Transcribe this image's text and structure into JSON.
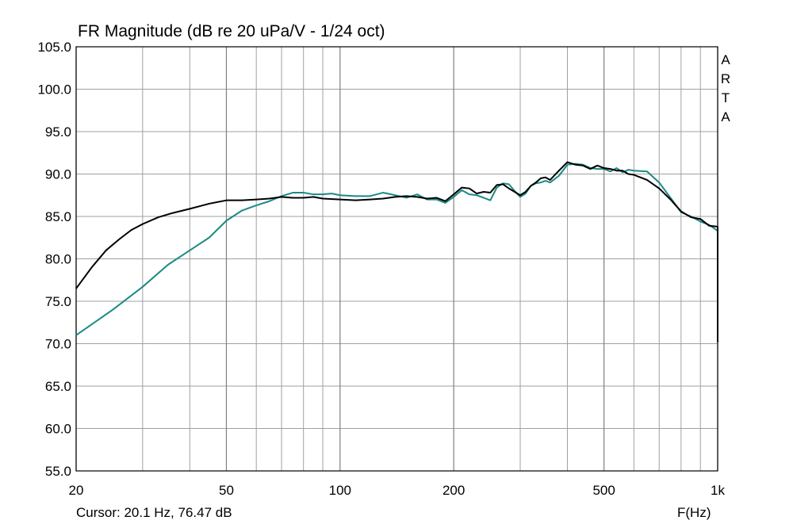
{
  "title": "FR Magnitude (dB re 20 uPa/V - 1/24 oct)",
  "cursor_text": "Cursor: 20.1 Hz, 76.47 dB",
  "x_unit_label": "F(Hz)",
  "brand_letters": [
    "A",
    "R",
    "T",
    "A"
  ],
  "colors": {
    "series_black": "#000000",
    "series_teal": "#1a8a84",
    "grid": "#a0a0a0",
    "axes": "#000000"
  },
  "chart_data": {
    "type": "line",
    "title": "FR Magnitude (dB re 20 uPa/V - 1/24 oct)",
    "xlabel": "F(Hz)",
    "ylabel": "",
    "x_scale": "log",
    "xlim": [
      20,
      1000
    ],
    "ylim": [
      55,
      105
    ],
    "grid": true,
    "x_ticks": [
      20,
      50,
      100,
      200,
      500,
      1000
    ],
    "x_tick_labels": [
      "20",
      "50",
      "100",
      "200",
      "500",
      "1k"
    ],
    "x_minor_grid": [
      30,
      40,
      60,
      70,
      80,
      90,
      300,
      400,
      600,
      700,
      800,
      900
    ],
    "y_ticks": [
      55,
      60,
      65,
      70,
      75,
      80,
      85,
      90,
      95,
      100,
      105
    ],
    "y_tick_labels": [
      "55.0",
      "60.0",
      "65.0",
      "70.0",
      "75.0",
      "80.0",
      "85.0",
      "90.0",
      "95.0",
      "100.0",
      "105.0"
    ],
    "series": [
      {
        "color": "#000000",
        "points": [
          [
            20,
            76.5
          ],
          [
            22,
            79
          ],
          [
            24,
            81
          ],
          [
            26,
            82.3
          ],
          [
            28,
            83.4
          ],
          [
            30,
            84.1
          ],
          [
            33,
            84.9
          ],
          [
            36,
            85.4
          ],
          [
            40,
            85.9
          ],
          [
            45,
            86.5
          ],
          [
            50,
            86.9
          ],
          [
            55,
            86.9
          ],
          [
            60,
            87.0
          ],
          [
            65,
            87.1
          ],
          [
            70,
            87.3
          ],
          [
            75,
            87.2
          ],
          [
            80,
            87.2
          ],
          [
            85,
            87.3
          ],
          [
            90,
            87.1
          ],
          [
            100,
            87.0
          ],
          [
            110,
            86.9
          ],
          [
            120,
            87.0
          ],
          [
            130,
            87.1
          ],
          [
            140,
            87.3
          ],
          [
            150,
            87.4
          ],
          [
            160,
            87.3
          ],
          [
            170,
            87.1
          ],
          [
            180,
            87.2
          ],
          [
            190,
            86.8
          ],
          [
            200,
            87.6
          ],
          [
            210,
            88.4
          ],
          [
            220,
            88.3
          ],
          [
            230,
            87.7
          ],
          [
            240,
            87.9
          ],
          [
            250,
            87.8
          ],
          [
            260,
            88.7
          ],
          [
            270,
            88.8
          ],
          [
            280,
            88.3
          ],
          [
            290,
            87.9
          ],
          [
            300,
            87.5
          ],
          [
            310,
            87.9
          ],
          [
            320,
            88.6
          ],
          [
            330,
            89.0
          ],
          [
            340,
            89.5
          ],
          [
            350,
            89.6
          ],
          [
            360,
            89.3
          ],
          [
            380,
            90.4
          ],
          [
            400,
            91.4
          ],
          [
            420,
            91.1
          ],
          [
            440,
            91.0
          ],
          [
            460,
            90.6
          ],
          [
            480,
            91.0
          ],
          [
            500,
            90.7
          ],
          [
            520,
            90.6
          ],
          [
            540,
            90.4
          ],
          [
            560,
            90.4
          ],
          [
            580,
            90.0
          ],
          [
            600,
            89.9
          ],
          [
            650,
            89.3
          ],
          [
            700,
            88.3
          ],
          [
            750,
            87.0
          ],
          [
            800,
            85.6
          ],
          [
            850,
            84.9
          ],
          [
            900,
            84.7
          ],
          [
            950,
            83.9
          ],
          [
            1000,
            83.8
          ],
          [
            1050,
            82.7
          ],
          [
            1100,
            80.5
          ],
          [
            1150,
            76.0
          ],
          [
            1170,
            70.2
          ]
        ]
      },
      {
        "color": "#1a8a84",
        "points": [
          [
            20,
            71.0
          ],
          [
            25,
            74.0
          ],
          [
            30,
            76.7
          ],
          [
            35,
            79.3
          ],
          [
            40,
            81.0
          ],
          [
            45,
            82.5
          ],
          [
            50,
            84.5
          ],
          [
            55,
            85.7
          ],
          [
            60,
            86.3
          ],
          [
            65,
            86.8
          ],
          [
            70,
            87.4
          ],
          [
            75,
            87.8
          ],
          [
            80,
            87.8
          ],
          [
            85,
            87.6
          ],
          [
            90,
            87.6
          ],
          [
            95,
            87.7
          ],
          [
            100,
            87.5
          ],
          [
            110,
            87.4
          ],
          [
            120,
            87.4
          ],
          [
            130,
            87.8
          ],
          [
            140,
            87.5
          ],
          [
            150,
            87.2
          ],
          [
            160,
            87.6
          ],
          [
            170,
            87.0
          ],
          [
            180,
            87.0
          ],
          [
            190,
            86.6
          ],
          [
            200,
            87.3
          ],
          [
            210,
            88.1
          ],
          [
            220,
            87.6
          ],
          [
            230,
            87.5
          ],
          [
            240,
            87.2
          ],
          [
            250,
            86.9
          ],
          [
            260,
            88.4
          ],
          [
            270,
            88.9
          ],
          [
            280,
            88.8
          ],
          [
            290,
            88.0
          ],
          [
            300,
            87.3
          ],
          [
            310,
            87.7
          ],
          [
            320,
            88.6
          ],
          [
            330,
            88.9
          ],
          [
            340,
            89.0
          ],
          [
            350,
            89.2
          ],
          [
            360,
            89.0
          ],
          [
            380,
            89.8
          ],
          [
            400,
            91.1
          ],
          [
            420,
            91.2
          ],
          [
            440,
            91.1
          ],
          [
            460,
            90.7
          ],
          [
            480,
            90.6
          ],
          [
            500,
            90.6
          ],
          [
            520,
            90.3
          ],
          [
            540,
            90.7
          ],
          [
            560,
            90.2
          ],
          [
            580,
            90.5
          ],
          [
            600,
            90.4
          ],
          [
            650,
            90.3
          ],
          [
            700,
            89.0
          ],
          [
            750,
            87.2
          ],
          [
            800,
            85.5
          ],
          [
            850,
            85.0
          ],
          [
            900,
            84.4
          ],
          [
            950,
            84.0
          ],
          [
            1000,
            83.3
          ],
          [
            1050,
            82.5
          ],
          [
            1100,
            79.0
          ],
          [
            1150,
            75.0
          ],
          [
            1170,
            70.2
          ]
        ]
      }
    ]
  }
}
